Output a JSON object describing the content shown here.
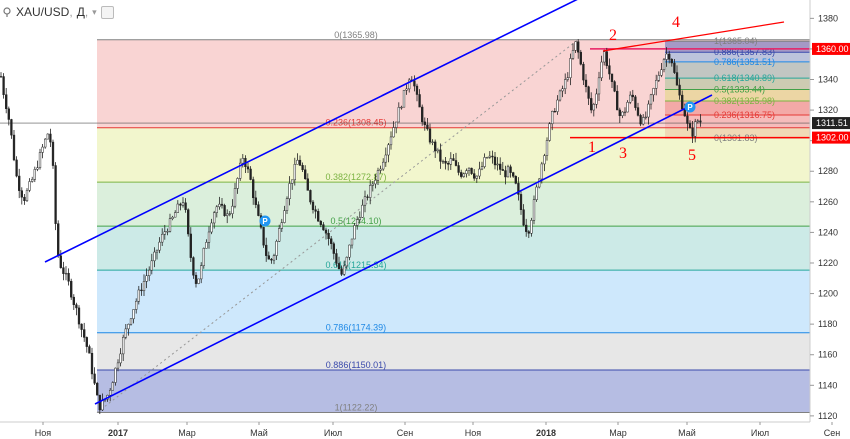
{
  "header": {
    "symbol": "XAU/USD",
    "separator": ",",
    "timeframe": "Д",
    "chevron": "▾",
    "pin_icon": "pin-icon",
    "settings_icon": "settings-square-icon"
  },
  "chart_data": {
    "type": "candlestick",
    "title": "XAU/USD, Д",
    "y_axis": {
      "ticks": [
        1120,
        1140,
        1160,
        1180,
        1200,
        1220,
        1240,
        1260,
        1280,
        1300,
        1320,
        1340,
        1360,
        1380
      ],
      "ylim": [
        1116,
        1392
      ],
      "position": "right"
    },
    "x_axis": {
      "ticks": [
        "Ноя",
        "2017",
        "Мар",
        "Май",
        "Июл",
        "Сен",
        "Ноя",
        "2018",
        "Мар",
        "Май",
        "Июл",
        "Сен"
      ],
      "bold_ticks": [
        "2017",
        "2018"
      ]
    },
    "price_labels": [
      {
        "value": "1360.00",
        "price": 1360.0,
        "color": "#ff0000"
      },
      {
        "value": "1311.51",
        "price": 1311.51,
        "color": "#222222"
      },
      {
        "value": "1302.00",
        "price": 1302.0,
        "color": "#ff0000"
      }
    ],
    "fib_retracement_main": {
      "high": 1365.98,
      "low": 1122.22,
      "levels": [
        {
          "ratio": "0",
          "price": 1365.98,
          "label": "0(1365.98)",
          "color": "#808080"
        },
        {
          "ratio": "0.236",
          "price": 1308.45,
          "label": "0.236(1308.45)",
          "color": "#e53935"
        },
        {
          "ratio": "0.382",
          "price": 1272.87,
          "label": "0.382(1272.87)",
          "color": "#7cb342"
        },
        {
          "ratio": "0.5",
          "price": 1244.1,
          "label": "0.5(1244.10)",
          "color": "#43a047"
        },
        {
          "ratio": "0.618",
          "price": 1215.34,
          "label": "0.618(1215.34)",
          "color": "#26a69a"
        },
        {
          "ratio": "0.786",
          "price": 1174.39,
          "label": "0.786(1174.39)",
          "color": "#1e88e5"
        },
        {
          "ratio": "0.886",
          "price": 1150.01,
          "label": "0.886(1150.01)",
          "color": "#3949ab"
        },
        {
          "ratio": "1",
          "price": 1122.22,
          "label": "1(1122.22)",
          "color": "#808080"
        }
      ]
    },
    "fib_retracement_small": {
      "high": 1365.04,
      "low": 1301.83,
      "levels": [
        {
          "ratio": "1",
          "price": 1365.04,
          "label": "1(1365.04)",
          "color": "#808080"
        },
        {
          "ratio": "0.886",
          "price": 1357.83,
          "label": "0.886(1357.83)",
          "color": "#3949ab"
        },
        {
          "ratio": "0.786",
          "price": 1351.51,
          "label": "0.786(1351.51)",
          "color": "#1e88e5"
        },
        {
          "ratio": "0.618",
          "price": 1340.89,
          "label": "0.618(1340.89)",
          "color": "#26a69a"
        },
        {
          "ratio": "0.5",
          "price": 1333.44,
          "label": "0.5(1333.44)",
          "color": "#43a047"
        },
        {
          "ratio": "0.382",
          "price": 1325.98,
          "label": "0.382(1325.98)",
          "color": "#7cb342"
        },
        {
          "ratio": "0.236",
          "price": 1316.75,
          "label": "0.236(1316.75)",
          "color": "#e53935"
        },
        {
          "ratio": "0",
          "price": 1301.83,
          "label": "0(1301.83)",
          "color": "#808080"
        }
      ]
    },
    "wave_labels": [
      "1",
      "2",
      "3",
      "4",
      "5"
    ],
    "markers": [
      {
        "label": "P",
        "color": "#2196f3"
      },
      {
        "label": "P",
        "color": "#2196f3"
      }
    ],
    "price_path": [
      [
        1,
        1342
      ],
      [
        4,
        1330
      ],
      [
        8,
        1318
      ],
      [
        12,
        1300
      ],
      [
        16,
        1278
      ],
      [
        20,
        1268
      ],
      [
        24,
        1262
      ],
      [
        28,
        1268
      ],
      [
        32,
        1274
      ],
      [
        36,
        1282
      ],
      [
        40,
        1290
      ],
      [
        44,
        1298
      ],
      [
        48,
        1305
      ],
      [
        52,
        1296
      ],
      [
        54,
        1266
      ],
      [
        57,
        1228
      ],
      [
        61,
        1218
      ],
      [
        65,
        1212
      ],
      [
        69,
        1206
      ],
      [
        73,
        1196
      ],
      [
        77,
        1188
      ],
      [
        81,
        1178
      ],
      [
        85,
        1170
      ],
      [
        89,
        1160
      ],
      [
        93,
        1146
      ],
      [
        97,
        1132
      ],
      [
        100,
        1126
      ],
      [
        104,
        1130
      ],
      [
        108,
        1134
      ],
      [
        112,
        1142
      ],
      [
        116,
        1152
      ],
      [
        120,
        1162
      ],
      [
        124,
        1172
      ],
      [
        128,
        1180
      ],
      [
        132,
        1188
      ],
      [
        136,
        1195
      ],
      [
        140,
        1202
      ],
      [
        144,
        1208
      ],
      [
        148,
        1214
      ],
      [
        152,
        1220
      ],
      [
        156,
        1227
      ],
      [
        160,
        1234
      ],
      [
        164,
        1240
      ],
      [
        168,
        1244
      ],
      [
        172,
        1248
      ],
      [
        176,
        1254
      ],
      [
        180,
        1258
      ],
      [
        184,
        1262
      ],
      [
        188,
        1238
      ],
      [
        192,
        1218
      ],
      [
        196,
        1208
      ],
      [
        200,
        1212
      ],
      [
        204,
        1228
      ],
      [
        208,
        1240
      ],
      [
        212,
        1250
      ],
      [
        216,
        1257
      ],
      [
        220,
        1256
      ],
      [
        224,
        1254
      ],
      [
        228,
        1250
      ],
      [
        232,
        1258
      ],
      [
        236,
        1270
      ],
      [
        240,
        1282
      ],
      [
        243,
        1290
      ],
      [
        246,
        1284
      ],
      [
        250,
        1276
      ],
      [
        254,
        1262
      ],
      [
        258,
        1250
      ],
      [
        262,
        1238
      ],
      [
        266,
        1226
      ],
      [
        270,
        1220
      ],
      [
        274,
        1226
      ],
      [
        278,
        1238
      ],
      [
        282,
        1250
      ],
      [
        286,
        1262
      ],
      [
        290,
        1272
      ],
      [
        294,
        1280
      ],
      [
        298,
        1288
      ],
      [
        302,
        1282
      ],
      [
        306,
        1270
      ],
      [
        310,
        1262
      ],
      [
        314,
        1256
      ],
      [
        318,
        1250
      ],
      [
        322,
        1246
      ],
      [
        326,
        1240
      ],
      [
        330,
        1234
      ],
      [
        334,
        1226
      ],
      [
        338,
        1218
      ],
      [
        342,
        1212
      ],
      [
        346,
        1220
      ],
      [
        350,
        1232
      ],
      [
        354,
        1242
      ],
      [
        358,
        1250
      ],
      [
        362,
        1256
      ],
      [
        366,
        1262
      ],
      [
        370,
        1268
      ],
      [
        374,
        1274
      ],
      [
        378,
        1280
      ],
      [
        382,
        1286
      ],
      [
        386,
        1294
      ],
      [
        390,
        1302
      ],
      [
        394,
        1310
      ],
      [
        398,
        1318
      ],
      [
        402,
        1326
      ],
      [
        406,
        1334
      ],
      [
        410,
        1344
      ],
      [
        413,
        1340
      ],
      [
        416,
        1330
      ],
      [
        420,
        1320
      ],
      [
        424,
        1310
      ],
      [
        428,
        1304
      ],
      [
        432,
        1298
      ],
      [
        436,
        1294
      ],
      [
        440,
        1288
      ],
      [
        444,
        1284
      ],
      [
        448,
        1284
      ],
      [
        452,
        1288
      ],
      [
        456,
        1282
      ],
      [
        460,
        1278
      ],
      [
        464,
        1280
      ],
      [
        468,
        1284
      ],
      [
        472,
        1280
      ],
      [
        476,
        1276
      ],
      [
        480,
        1280
      ],
      [
        484,
        1286
      ],
      [
        488,
        1290
      ],
      [
        492,
        1288
      ],
      [
        496,
        1284
      ],
      [
        500,
        1282
      ],
      [
        504,
        1278
      ],
      [
        508,
        1280
      ],
      [
        512,
        1276
      ],
      [
        516,
        1270
      ],
      [
        520,
        1258
      ],
      [
        524,
        1246
      ],
      [
        528,
        1240
      ],
      [
        532,
        1252
      ],
      [
        536,
        1266
      ],
      [
        540,
        1280
      ],
      [
        544,
        1292
      ],
      [
        548,
        1304
      ],
      [
        552,
        1316
      ],
      [
        556,
        1324
      ],
      [
        560,
        1330
      ],
      [
        564,
        1336
      ],
      [
        568,
        1344
      ],
      [
        572,
        1356
      ],
      [
        576,
        1364
      ],
      [
        580,
        1352
      ],
      [
        584,
        1340
      ],
      [
        588,
        1328
      ],
      [
        592,
        1318
      ],
      [
        596,
        1330
      ],
      [
        600,
        1348
      ],
      [
        604,
        1358
      ],
      [
        608,
        1348
      ],
      [
        612,
        1336
      ],
      [
        616,
        1326
      ],
      [
        620,
        1316
      ],
      [
        624,
        1318
      ],
      [
        628,
        1326
      ],
      [
        632,
        1330
      ],
      [
        636,
        1322
      ],
      [
        640,
        1314
      ],
      [
        644,
        1312
      ],
      [
        648,
        1320
      ],
      [
        652,
        1330
      ],
      [
        656,
        1338
      ],
      [
        660,
        1346
      ],
      [
        664,
        1354
      ],
      [
        668,
        1358
      ],
      [
        672,
        1352
      ],
      [
        676,
        1338
      ],
      [
        680,
        1328
      ],
      [
        684,
        1320
      ],
      [
        688,
        1308
      ],
      [
        692,
        1304
      ],
      [
        696,
        1312
      ],
      [
        699,
        1314
      ],
      [
        702,
        1311
      ]
    ]
  }
}
